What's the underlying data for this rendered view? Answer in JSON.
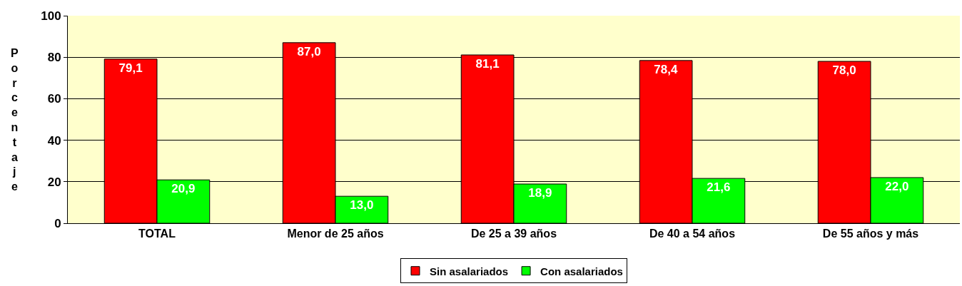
{
  "chart_data": {
    "type": "bar",
    "ylabel": "Porcentaje",
    "categories": [
      "TOTAL",
      "Menor de 25 años",
      "De 25 a 39 años",
      "De 40 a 54 años",
      "De 55 años y más"
    ],
    "series": [
      {
        "name": "Sin asalariados",
        "color": "#ff0000",
        "values": [
          79.1,
          87.0,
          81.1,
          78.4,
          78.0
        ],
        "value_labels": [
          "79,1",
          "87,0",
          "81,1",
          "78,4",
          "78,0"
        ]
      },
      {
        "name": "Con asalariados",
        "color": "#00ff00",
        "values": [
          20.9,
          13.0,
          18.9,
          21.6,
          22.0
        ],
        "value_labels": [
          "20,9",
          "13,0",
          "18,9",
          "21,6",
          "22,0"
        ]
      }
    ],
    "ylim": [
      0,
      100
    ],
    "yticks": [
      0,
      20,
      40,
      60,
      80,
      100
    ],
    "grid": "y",
    "legend": "bottom"
  }
}
